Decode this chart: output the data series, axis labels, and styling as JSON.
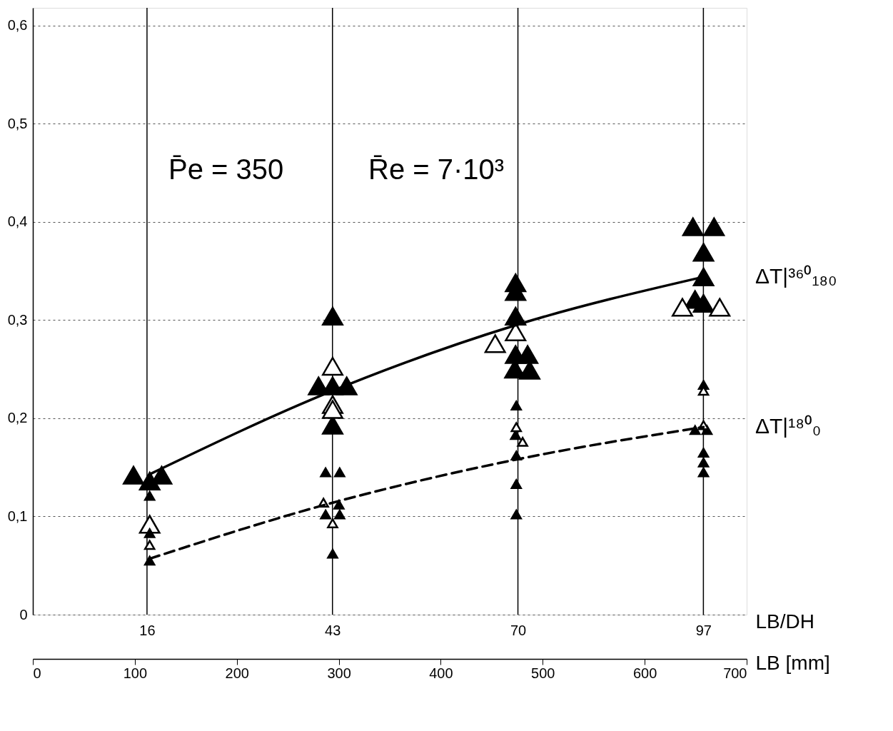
{
  "chart_data": {
    "type": "scatter",
    "marker": "triangle",
    "xlabel": "LB [mm]",
    "x2label": "LB/DH",
    "xlim": [
      0,
      700
    ],
    "xticks": [
      0,
      100,
      200,
      300,
      400,
      500,
      600,
      700
    ],
    "x2lim": [
      -0.62,
      103.3
    ],
    "x2ticks": [
      16,
      43,
      70,
      97
    ],
    "ylim": [
      0,
      0.618
    ],
    "yticks": [
      0,
      {
        "value": 0.1,
        "label": "0,1"
      },
      {
        "value": 0.2,
        "label": "0,2"
      },
      {
        "value": 0.3,
        "label": "0,3"
      },
      {
        "value": 0.4,
        "label": "0,4"
      },
      {
        "value": 0.5,
        "label": "0,5"
      },
      {
        "value": 0.6,
        "label": "0,6"
      }
    ],
    "grid": true,
    "annotations": [
      "P̄e = 350",
      "R̄e = 7·10³"
    ],
    "series": [
      {
        "color": "#000000",
        "x": [
          98.7,
          114.6,
          126.3,
          294,
          280.2,
          294,
          307.8,
          294,
          473.4,
          473.4,
          473.4,
          473.4,
          485.2,
          472.7,
          487.2,
          647.3,
          668.0,
          657.7,
          657.7,
          649.4,
          657.7
        ],
        "values": [
          0.142,
          0.136,
          0.142,
          0.304,
          0.233,
          0.233,
          0.233,
          0.193,
          0.338,
          0.329,
          0.304,
          0.265,
          0.265,
          0.25,
          0.249,
          0.395,
          0.395,
          0.369,
          0.344,
          0.321,
          0.317
        ]
      },
      {
        "color": "#ffffff",
        "x": [
          114.6,
          294,
          294,
          294,
          453.4,
          473.4,
          637,
          673.6
        ],
        "values": [
          0.092,
          0.253,
          0.214,
          0.209,
          0.276,
          0.288,
          0.313,
          0.313
        ]
      },
      {
        "color": "#000000",
        "x": [
          114.6,
          114.6,
          114.6,
          287.1,
          300.9,
          300.2,
          287.1,
          300.9,
          294,
          474.1,
          473.4,
          474.1,
          474.1,
          474.1,
          657.7,
          649.4,
          661.1,
          657.7,
          657.7,
          657.7
        ],
        "values": [
          0.121,
          0.083,
          0.055,
          0.145,
          0.145,
          0.112,
          0.102,
          0.102,
          0.062,
          0.213,
          0.183,
          0.162,
          0.133,
          0.102,
          0.234,
          0.188,
          0.188,
          0.165,
          0.155,
          0.145
        ]
      },
      {
        "color": "#ffffff",
        "x": [
          114.6,
          285,
          294,
          474.1,
          480.3,
          657.7,
          657.7
        ],
        "values": [
          0.071,
          0.114,
          0.093,
          0.191,
          0.176,
          0.228,
          0.193
        ]
      },
      {
        "type": "line",
        "name": "ΔT|³⁶⁰₁₈₀",
        "color": "#000000",
        "line_style": "solid",
        "marker": "none",
        "x": [
          114.6,
          294,
          474.1,
          657.7
        ],
        "values": [
          0.143,
          0.228,
          0.295,
          0.344
        ]
      },
      {
        "type": "line",
        "name": "ΔT|¹⁸⁰₀",
        "color": "#000000",
        "line_style": "dashed",
        "marker": "none",
        "x": [
          114.6,
          294,
          474.1,
          657.7
        ],
        "values": [
          0.057,
          0.114,
          0.158,
          0.191
        ]
      }
    ]
  }
}
